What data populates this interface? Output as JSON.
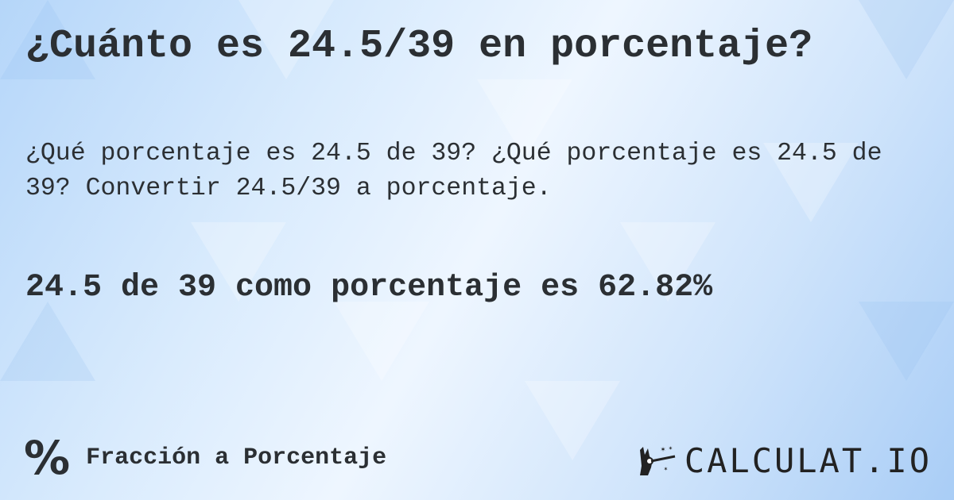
{
  "title": "¿Cuánto es 24.5/39 en porcentaje?",
  "description": "¿Qué porcentaje es 24.5 de 39? ¿Qué porcentaje es 24.5 de 39? Convertir 24.5/39 a porcentaje.",
  "result": "24.5 de 39 como porcentaje es 62.82%",
  "footer": {
    "icon": "percent-icon",
    "symbol": "%",
    "category": "Fracción a Porcentaje"
  },
  "logo": {
    "text": "CALCULAT.IO",
    "icon": "magic-hand-wand-icon"
  }
}
